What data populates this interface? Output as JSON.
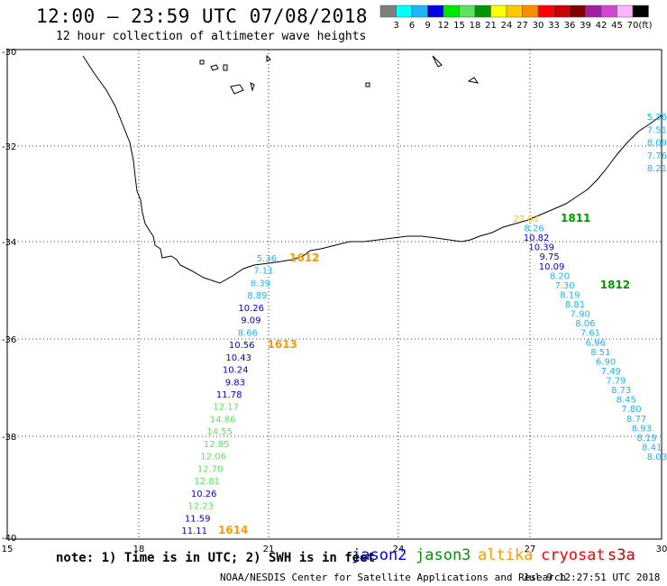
{
  "header": {
    "title": "12:00 – 23:59 UTC 07/08/2018",
    "subtitle": "12 hour collection of altimeter wave heights"
  },
  "colorbar": {
    "unit_label": "(ft)",
    "bins": [
      {
        "label": "3",
        "color": "#7f7f7f"
      },
      {
        "label": "6",
        "color": "#00ffff"
      },
      {
        "label": "9",
        "color": "#1fb4ff"
      },
      {
        "label": "12",
        "color": "#0000e6"
      },
      {
        "label": "15",
        "color": "#00e600"
      },
      {
        "label": "18",
        "color": "#60e060"
      },
      {
        "label": "21",
        "color": "#009600"
      },
      {
        "label": "24",
        "color": "#ffff00"
      },
      {
        "label": "27",
        "color": "#ffc800"
      },
      {
        "label": "30",
        "color": "#ff8c00"
      },
      {
        "label": "33",
        "color": "#ff0000"
      },
      {
        "label": "36",
        "color": "#c80000"
      },
      {
        "label": "39",
        "color": "#820000"
      },
      {
        "label": "42",
        "color": "#a01ea0"
      },
      {
        "label": "45",
        "color": "#d246d2"
      },
      {
        "label": "70",
        "color": "#ffb4ff"
      },
      {
        "label": "",
        "color": "#000000"
      }
    ]
  },
  "axes": {
    "lat_labels": [
      "-30",
      "-32",
      "-34",
      "-36",
      "-38",
      "-40"
    ],
    "lon_labels": [
      "15",
      "18",
      "21",
      "24",
      "27",
      "30"
    ]
  },
  "tracks": [
    {
      "points": [
        {
          "v": "5.36",
          "c": "#1fb4ff"
        },
        {
          "v": "7.11",
          "c": "#1fb4ff"
        },
        {
          "v": "8.39",
          "c": "#1fb4ff"
        },
        {
          "v": "8.89",
          "c": "#1fb4ff"
        },
        {
          "v": "10.26",
          "c": "#0000e6"
        },
        {
          "v": "9.09",
          "c": "#0000e6"
        },
        {
          "v": "8.66",
          "c": "#1fb4ff"
        },
        {
          "v": "10.56",
          "c": "#0000e6"
        },
        {
          "v": "10.43",
          "c": "#0000e6"
        },
        {
          "v": "10.24",
          "c": "#0000e6"
        },
        {
          "v": "9.83",
          "c": "#0000e6"
        },
        {
          "v": "11.78",
          "c": "#0000e6"
        },
        {
          "v": "12.17",
          "c": "#60e060"
        },
        {
          "v": "14.86",
          "c": "#60e060"
        },
        {
          "v": "14.55",
          "c": "#60e060"
        },
        {
          "v": "12.85",
          "c": "#60e060"
        },
        {
          "v": "12.06",
          "c": "#60e060"
        },
        {
          "v": "12.70",
          "c": "#60e060"
        },
        {
          "v": "12.81",
          "c": "#60e060"
        },
        {
          "v": "10.26",
          "c": "#0000e6"
        },
        {
          "v": "12.23",
          "c": "#60e060"
        },
        {
          "v": "11.59",
          "c": "#0000e6"
        },
        {
          "v": "11.11",
          "c": "#0000e6"
        }
      ],
      "time_labels": [
        {
          "text": "1612",
          "color": "#ff9900"
        },
        {
          "text": "1613",
          "color": "#ff9900"
        },
        {
          "text": "1614",
          "color": "#ff9900"
        }
      ]
    },
    {
      "points": [
        {
          "v": "27.81",
          "c": "#ffc800"
        },
        {
          "v": "8.26",
          "c": "#1fb4ff"
        },
        {
          "v": "10.82",
          "c": "#0000e6"
        },
        {
          "v": "10.39",
          "c": "#0000e6"
        },
        {
          "v": "9.75",
          "c": "#0000e6"
        },
        {
          "v": "10.09",
          "c": "#0000e6"
        },
        {
          "v": "8.20",
          "c": "#1fb4ff"
        },
        {
          "v": "7.30",
          "c": "#1fb4ff"
        },
        {
          "v": "8.19",
          "c": "#1fb4ff"
        },
        {
          "v": "8.81",
          "c": "#1fb4ff"
        },
        {
          "v": "7.90",
          "c": "#1fb4ff"
        },
        {
          "v": "8.06",
          "c": "#1fb4ff"
        },
        {
          "v": "7.61",
          "c": "#1fb4ff"
        },
        {
          "v": "6.96",
          "c": "#1fb4ff"
        },
        {
          "v": "8.51",
          "c": "#1fb4ff"
        },
        {
          "v": "6.90",
          "c": "#1fb4ff"
        },
        {
          "v": "7.49",
          "c": "#1fb4ff"
        },
        {
          "v": "7.79",
          "c": "#1fb4ff"
        },
        {
          "v": "8.73",
          "c": "#1fb4ff"
        },
        {
          "v": "8.45",
          "c": "#1fb4ff"
        },
        {
          "v": "7.80",
          "c": "#1fb4ff"
        },
        {
          "v": "8.77",
          "c": "#1fb4ff"
        },
        {
          "v": "8.93",
          "c": "#1fb4ff"
        },
        {
          "v": "8.19",
          "c": "#1fb4ff"
        },
        {
          "v": "8.41",
          "c": "#1fb4ff"
        },
        {
          "v": "8.03",
          "c": "#1fb4ff"
        }
      ],
      "time_labels": [
        {
          "text": "1811",
          "color": "#009600"
        },
        {
          "text": "1812",
          "color": "#009600"
        }
      ]
    },
    {
      "points": [
        {
          "v": "5.36",
          "c": "#1fb4ff"
        },
        {
          "v": "7.51",
          "c": "#1fb4ff"
        },
        {
          "v": "8.09",
          "c": "#1fb4ff"
        },
        {
          "v": "7.76",
          "c": "#1fb4ff"
        },
        {
          "v": "8.21",
          "c": "#1fb4ff"
        }
      ],
      "time_labels": []
    }
  ],
  "footer": {
    "note": "note: 1) Time is in UTC; 2) SWH is in feet",
    "satellites": [
      {
        "name": "jason2",
        "color": "#0000e6"
      },
      {
        "name": "jason3",
        "color": "#009600"
      },
      {
        "name": "altika",
        "color": "#ff9900"
      },
      {
        "name": "cryosat",
        "color": "#ff0000"
      },
      {
        "name": "s3a",
        "color": "#c80000"
      }
    ],
    "credit": "NOAA/NESDIS Center for Satellite Applications and Research",
    "timestamp": "Jul  9 12:27:51 UTC 2018"
  }
}
